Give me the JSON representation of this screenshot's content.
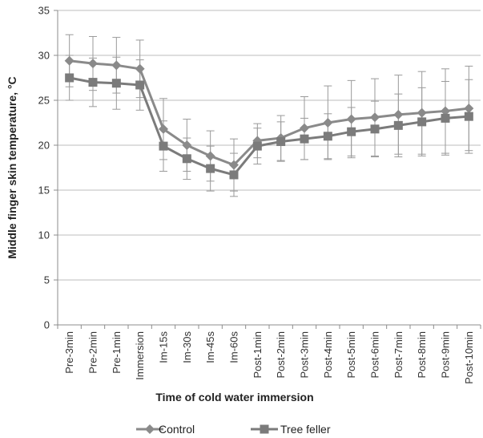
{
  "chart_data": {
    "type": "line",
    "title": "",
    "xlabel": "Time of cold water immersion",
    "ylabel": "Middle finger skin temperature, °C",
    "ylim": [
      0,
      35
    ],
    "yticks": [
      0,
      5,
      10,
      15,
      20,
      25,
      30,
      35
    ],
    "grid": "horizontal",
    "legend_position": "bottom",
    "categories": [
      "Pre-3min",
      "Pre-2min",
      "Pre-1min",
      "Immersion",
      "Im-15s",
      "Im-30s",
      "Im-45s",
      "Im-60s",
      "Post-1min",
      "Post-2min",
      "Post-3min",
      "Post-4min",
      "Post-5min",
      "Post-6min",
      "Post-7min",
      "Post-8min",
      "Post-9min",
      "Post-10min"
    ],
    "series": [
      {
        "name": "Control",
        "marker": "diamond",
        "color": "#8a8a8a",
        "values": [
          29.4,
          29.1,
          28.9,
          28.5,
          21.8,
          20.0,
          18.8,
          17.8,
          20.5,
          20.8,
          21.9,
          22.5,
          22.9,
          23.1,
          23.4,
          23.6,
          23.8,
          24.1
        ],
        "error": [
          2.9,
          3.0,
          3.1,
          3.2,
          3.4,
          2.9,
          2.8,
          2.9,
          1.9,
          2.5,
          3.5,
          4.1,
          4.3,
          4.3,
          4.4,
          4.6,
          4.7,
          4.7
        ]
      },
      {
        "name": "Tree feller",
        "marker": "square",
        "color": "#7b7b7b",
        "values": [
          27.5,
          27.0,
          26.9,
          26.7,
          19.9,
          18.5,
          17.4,
          16.7,
          19.9,
          20.4,
          20.7,
          21.0,
          21.5,
          21.8,
          22.2,
          22.6,
          23.0,
          23.2
        ],
        "error": [
          2.5,
          2.7,
          2.9,
          2.8,
          2.8,
          2.3,
          2.5,
          2.4,
          2.0,
          2.2,
          2.3,
          2.5,
          2.7,
          3.1,
          3.5,
          3.8,
          4.1,
          4.1
        ]
      }
    ]
  }
}
